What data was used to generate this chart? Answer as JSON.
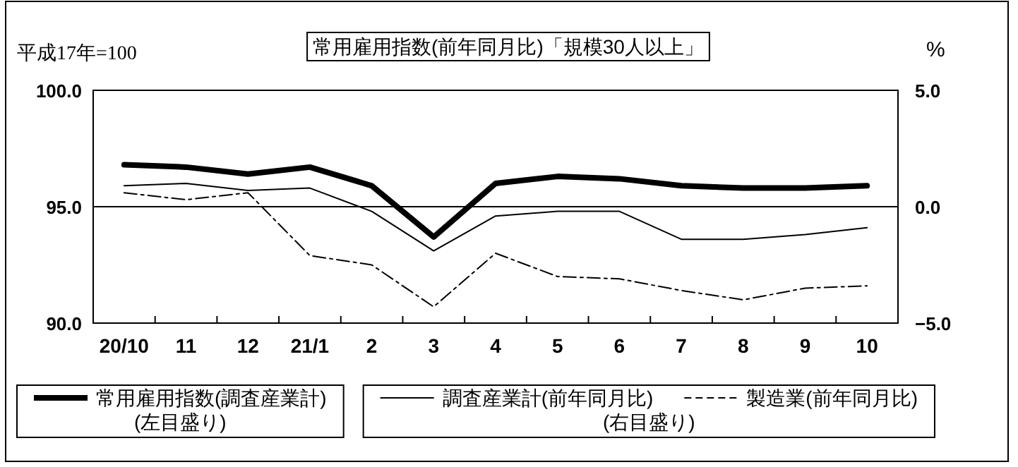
{
  "chart_data": {
    "type": "line",
    "title": "常用雇用指数(前年同月比)「規模30人以上」",
    "ylabel": "平成17年=100",
    "y2label": "%",
    "categories": [
      "20/10",
      "11",
      "12",
      "21/1",
      "2",
      "3",
      "4",
      "5",
      "6",
      "7",
      "8",
      "9",
      "10"
    ],
    "series": [
      {
        "name": "常用雇用指数(調査産業計)",
        "color": "#000000",
        "axis": "y",
        "line_style": "solid",
        "values": [
          96.8,
          96.7,
          96.4,
          96.7,
          95.9,
          93.7,
          96.0,
          96.3,
          96.2,
          95.9,
          95.8,
          95.8,
          95.9
        ]
      },
      {
        "name": "調査産業計(前年同月比)",
        "color": "#000000",
        "axis": "y2",
        "line_style": "solid",
        "values": [
          0.9,
          1.0,
          0.7,
          0.8,
          -0.2,
          -1.9,
          -0.4,
          -0.2,
          -0.2,
          -1.4,
          -1.4,
          -1.2,
          -0.9
        ]
      },
      {
        "name": "製造業(前年同月比)",
        "color": "#000000",
        "axis": "y2",
        "line_style": "dashed",
        "values": [
          0.6,
          0.3,
          0.6,
          -2.1,
          -2.5,
          -4.3,
          -2.0,
          -3.0,
          -3.1,
          -3.6,
          -4.0,
          -3.5,
          -3.4
        ]
      }
    ],
    "ylim": [
      90,
      100
    ],
    "yticks": [
      {
        "value": 90,
        "label": "90.0"
      },
      {
        "value": 95,
        "label": "95.0"
      },
      {
        "value": 100,
        "label": "100.0"
      }
    ],
    "y2lim": [
      -5,
      5
    ],
    "y2ticks": [
      {
        "value": -5,
        "label": "−5.0"
      },
      {
        "value": 0,
        "label": "0.0"
      },
      {
        "value": 5,
        "label": "5.0"
      }
    ],
    "grid": "y",
    "legend": "bottom",
    "marker": "none",
    "annotations": [
      "(左目盛り)",
      "(右目盛り)"
    ]
  }
}
